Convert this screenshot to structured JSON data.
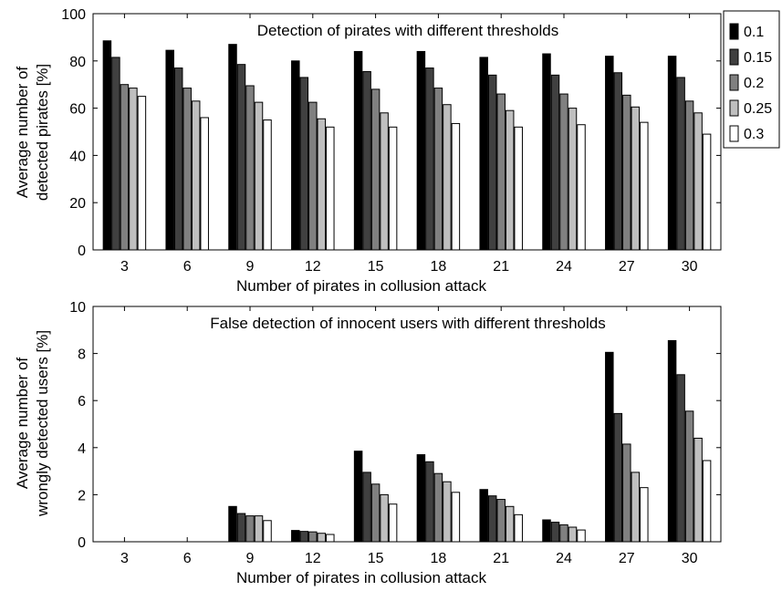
{
  "chart_data": [
    {
      "type": "bar",
      "title": "Detection of pirates with different thresholds",
      "xlabel": "Number of pirates in collusion attack",
      "ylabel": [
        "Average number of",
        "detected pirates [%]"
      ],
      "categories": [
        "3",
        "6",
        "9",
        "12",
        "15",
        "18",
        "21",
        "24",
        "27",
        "30"
      ],
      "ylim": [
        0,
        100
      ],
      "yticks": [
        0,
        20,
        40,
        60,
        80,
        100
      ],
      "grid": false,
      "legend": "outside-top-right",
      "series": [
        {
          "name": "0.1",
          "color": "#000000",
          "values": [
            88.5,
            84.5,
            87,
            80,
            84,
            84,
            81.5,
            83,
            82,
            82
          ]
        },
        {
          "name": "0.15",
          "color": "#404040",
          "values": [
            81.5,
            77,
            78.5,
            73,
            75.5,
            77,
            74,
            74,
            75,
            73
          ]
        },
        {
          "name": "0.2",
          "color": "#808080",
          "values": [
            70,
            68.5,
            69.5,
            62.5,
            68,
            68.5,
            66,
            66,
            65.5,
            63
          ]
        },
        {
          "name": "0.25",
          "color": "#bfbfbf",
          "values": [
            68.5,
            63,
            62.5,
            55.5,
            58,
            61.5,
            59,
            60,
            60.5,
            58
          ]
        },
        {
          "name": "0.3",
          "color": "#ffffff",
          "values": [
            65,
            56,
            55,
            52,
            52,
            53.5,
            52,
            53,
            54,
            49
          ]
        }
      ]
    },
    {
      "type": "bar",
      "title": "False detection of innocent users with different thresholds",
      "xlabel": "Number of pirates in collusion attack",
      "ylabel": [
        "Average number of",
        "wrongly detected users [%]"
      ],
      "categories": [
        "3",
        "6",
        "9",
        "12",
        "15",
        "18",
        "21",
        "24",
        "27",
        "30"
      ],
      "ylim": [
        0,
        10
      ],
      "yticks": [
        0,
        2,
        4,
        6,
        8,
        10
      ],
      "grid": false,
      "series": [
        {
          "name": "0.1",
          "color": "#000000",
          "values": [
            0,
            0,
            1.5,
            0.48,
            3.85,
            3.7,
            2.22,
            0.93,
            8.05,
            8.55
          ]
        },
        {
          "name": "0.15",
          "color": "#404040",
          "values": [
            0,
            0,
            1.2,
            0.44,
            2.95,
            3.4,
            1.95,
            0.83,
            5.45,
            7.1
          ]
        },
        {
          "name": "0.2",
          "color": "#808080",
          "values": [
            0,
            0,
            1.1,
            0.42,
            2.45,
            2.9,
            1.8,
            0.72,
            4.15,
            5.55
          ]
        },
        {
          "name": "0.25",
          "color": "#bfbfbf",
          "values": [
            0,
            0,
            1.1,
            0.36,
            2.0,
            2.55,
            1.5,
            0.62,
            2.95,
            4.4
          ]
        },
        {
          "name": "0.3",
          "color": "#ffffff",
          "values": [
            0,
            0,
            0.9,
            0.31,
            1.6,
            2.1,
            1.15,
            0.5,
            2.3,
            3.45
          ]
        }
      ]
    }
  ]
}
